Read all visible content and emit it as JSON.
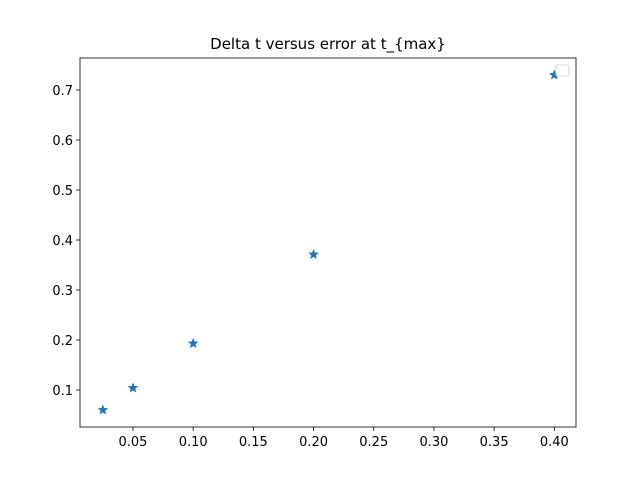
{
  "chart_data": {
    "type": "scatter",
    "title": "Delta t versus error at t_{max}",
    "xlabel": "",
    "ylabel": "",
    "xlim": [
      0.006,
      0.418
    ],
    "ylim": [
      0.026,
      0.764
    ],
    "xticks": [
      0.05,
      0.1,
      0.15,
      0.2,
      0.25,
      0.3,
      0.35,
      0.4
    ],
    "xtick_labels": [
      "0.05",
      "0.10",
      "0.15",
      "0.20",
      "0.25",
      "0.30",
      "0.35",
      "0.40"
    ],
    "yticks": [
      0.1,
      0.2,
      0.3,
      0.4,
      0.5,
      0.6,
      0.7
    ],
    "ytick_labels": [
      "0.1",
      "0.2",
      "0.3",
      "0.4",
      "0.5",
      "0.6",
      "0.7"
    ],
    "marker": "star",
    "color": "#1f77b4",
    "grid": false,
    "legend": {
      "location": "top-right",
      "entries": []
    },
    "points": [
      {
        "x": 0.025,
        "y": 0.06
      },
      {
        "x": 0.05,
        "y": 0.104
      },
      {
        "x": 0.1,
        "y": 0.193
      },
      {
        "x": 0.2,
        "y": 0.371
      },
      {
        "x": 0.4,
        "y": 0.73
      }
    ]
  }
}
